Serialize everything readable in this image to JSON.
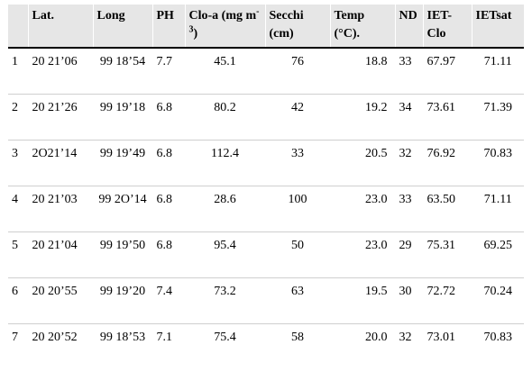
{
  "table": {
    "headers": [
      {
        "label": "",
        "sup": "",
        "suffix": ""
      },
      {
        "label": "Lat.",
        "sup": "",
        "suffix": ""
      },
      {
        "label": "Long",
        "sup": "",
        "suffix": ""
      },
      {
        "label": "PH",
        "sup": "",
        "suffix": ""
      },
      {
        "label": "Clo-a (mg m",
        "sup": "-3",
        "suffix": ")"
      },
      {
        "label": "Secchi (cm)",
        "sup": "",
        "suffix": ""
      },
      {
        "label": "Temp (°C).",
        "sup": "",
        "suffix": ""
      },
      {
        "label": "ND",
        "sup": "",
        "suffix": ""
      },
      {
        "label": "IET-Clo",
        "sup": "",
        "suffix": ""
      },
      {
        "label": "IETsat",
        "sup": "",
        "suffix": ""
      }
    ],
    "rows": [
      {
        "id": "1",
        "lat": "20 21’06",
        "long": "99 18’54",
        "ph": "7.7",
        "cloa": "45.1",
        "secchi": "76",
        "temp": "18.8",
        "nd": "33",
        "iet_clo": "67.97",
        "ietsat": "71.11"
      },
      {
        "id": "2",
        "lat": "20 21’26",
        "long": "99 19’18",
        "ph": "6.8",
        "cloa": "80.2",
        "secchi": "42",
        "temp": "19.2",
        "nd": "34",
        "iet_clo": "73.61",
        "ietsat": "71.39"
      },
      {
        "id": "3",
        "lat": "2O21’14",
        "long": "99 19’49",
        "ph": "6.8",
        "cloa": "112.4",
        "secchi": "33",
        "temp": "20.5",
        "nd": "32",
        "iet_clo": "76.92",
        "ietsat": "70.83"
      },
      {
        "id": "4",
        "lat": "20 21’03",
        "long": "99 2O’14",
        "ph": "6.8",
        "cloa": "28.6",
        "secchi": "100",
        "temp": "23.0",
        "nd": "33",
        "iet_clo": "63.50",
        "ietsat": "71.11"
      },
      {
        "id": "5",
        "lat": "20 21’04",
        "long": "99 19’50",
        "ph": "6.8",
        "cloa": "95.4",
        "secchi": "50",
        "temp": "23.0",
        "nd": "29",
        "iet_clo": "75.31",
        "ietsat": "69.25"
      },
      {
        "id": "6",
        "lat": "20 20’55",
        "long": "99 19’20",
        "ph": "7.4",
        "cloa": "73.2",
        "secchi": "63",
        "temp": "19.5",
        "nd": "30",
        "iet_clo": "72.72",
        "ietsat": "70.24"
      },
      {
        "id": "7",
        "lat": "20 20’52",
        "long": "99 18’53",
        "ph": "7.1",
        "cloa": "75.4",
        "secchi": "58",
        "temp": "20.0",
        "nd": "32",
        "iet_clo": "73.01",
        "ietsat": "70.83"
      }
    ]
  }
}
